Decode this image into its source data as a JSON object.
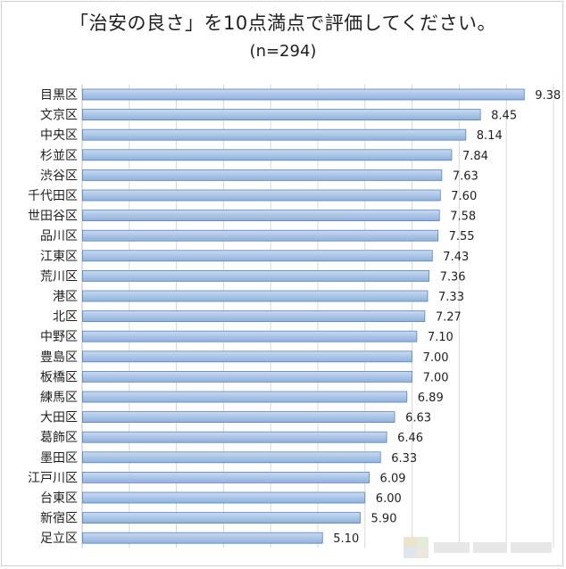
{
  "chart_data": {
    "type": "bar",
    "orientation": "horizontal",
    "title": "「治安の良さ」を10点満点で評価してください。",
    "subtitle": "(n=294)",
    "categories": [
      "目黒区",
      "文京区",
      "中央区",
      "杉並区",
      "渋谷区",
      "千代田区",
      "世田谷区",
      "品川区",
      "江東区",
      "荒川区",
      "港区",
      "北区",
      "中野区",
      "豊島区",
      "板橋区",
      "練馬区",
      "大田区",
      "葛飾区",
      "墨田区",
      "江戸川区",
      "台東区",
      "新宿区",
      "足立区"
    ],
    "values": [
      9.38,
      8.45,
      8.14,
      7.84,
      7.63,
      7.6,
      7.58,
      7.55,
      7.43,
      7.36,
      7.33,
      7.27,
      7.1,
      7.0,
      7.0,
      6.89,
      6.63,
      6.46,
      6.33,
      6.09,
      6.0,
      5.9,
      5.1
    ],
    "value_labels": [
      "9.38",
      "8.45",
      "8.14",
      "7.84",
      "7.63",
      "7.60",
      "7.58",
      "7.55",
      "7.43",
      "7.36",
      "7.33",
      "7.27",
      "7.10",
      "7.00",
      "7.00",
      "6.89",
      "6.63",
      "6.46",
      "6.33",
      "6.09",
      "6.00",
      "5.90",
      "5.10"
    ],
    "xlim": [
      0,
      10
    ],
    "grid": true,
    "xaxis_labels_visible": false,
    "legend": "none",
    "colors": {
      "bar_top": "#c9daf1",
      "bar_bottom": "#8fb1dc",
      "bar_border": "#5b86bd",
      "grid": "#d9d9d9",
      "axis": "#bfbfbf"
    }
  }
}
